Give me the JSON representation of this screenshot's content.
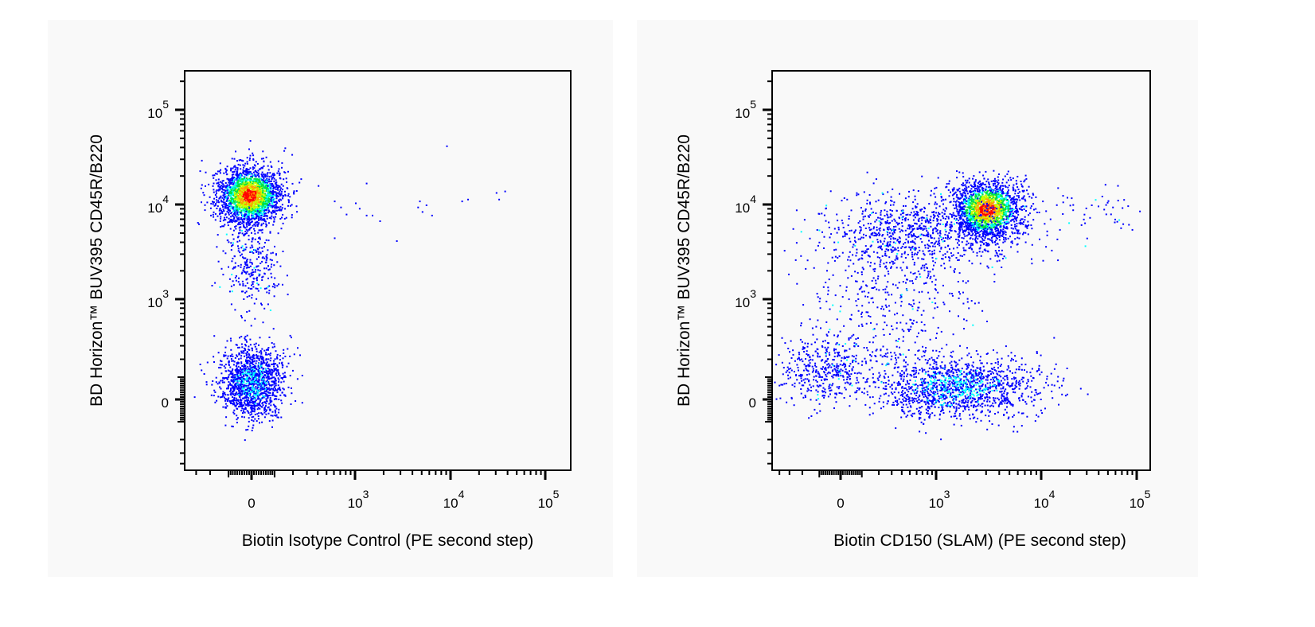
{
  "chart_data": [
    {
      "type": "scatter",
      "style": "flow cytometry pseudocolor density dot plot",
      "xlabel": "Biotin Isotype Control (PE second step)",
      "ylabel": "BD Horizon™ BUV395 CD45R/B220",
      "x_scale": "biexponential",
      "y_scale": "biexponential",
      "xlim": [
        -410,
        185000
      ],
      "ylim": [
        -480,
        262143
      ],
      "grid": false,
      "xticks": [
        {
          "value": 0,
          "base": "0",
          "exp": ""
        },
        {
          "value": 1000,
          "base": "10",
          "exp": "3"
        },
        {
          "value": 10000,
          "base": "10",
          "exp": "4"
        },
        {
          "value": 100000,
          "base": "10",
          "exp": "5"
        }
      ],
      "yticks": [
        {
          "value": 0,
          "base": "0",
          "exp": ""
        },
        {
          "value": 1000,
          "base": "10",
          "exp": "3"
        },
        {
          "value": 10000,
          "base": "10",
          "exp": "4"
        },
        {
          "value": 100000,
          "base": "10",
          "exp": "5"
        }
      ],
      "populations": [
        {
          "center": [
            -10,
            12600
          ],
          "spread_asinh": [
            0.38,
            0.35
          ],
          "count": 2300,
          "density": "high"
        },
        {
          "center": [
            0,
            2370
          ],
          "spread_asinh": [
            0.32,
            0.55
          ],
          "count": 300,
          "density": "low"
        },
        {
          "center": [
            0,
            77
          ],
          "spread_asinh": [
            0.38,
            0.43
          ],
          "count": 1400,
          "density": "medium"
        }
      ],
      "outliers": [
        [
          1300,
          17000
        ],
        [
          9000,
          42000
        ],
        [
          600,
          11000
        ],
        [
          700,
          9500
        ],
        [
          800,
          8000
        ],
        [
          1000,
          10500
        ],
        [
          1100,
          9200
        ],
        [
          1300,
          7800
        ],
        [
          1500,
          7800
        ],
        [
          1800,
          6800
        ],
        [
          2700,
          4200
        ],
        [
          4500,
          9500
        ],
        [
          4700,
          11000
        ],
        [
          5000,
          8500
        ],
        [
          5500,
          10000
        ],
        [
          6300,
          7800
        ],
        [
          13000,
          11000
        ],
        [
          15000,
          11500
        ],
        [
          30000,
          13500
        ],
        [
          32000,
          11500
        ],
        [
          37000,
          14000
        ],
        [
          600,
          4500
        ],
        [
          400,
          16000
        ]
      ]
    },
    {
      "type": "scatter",
      "style": "flow cytometry pseudocolor density dot plot",
      "xlabel": "Biotin CD150 (SLAM) (PE second step)",
      "ylabel": "BD Horizon™ BUV395 CD45R/B220",
      "x_scale": "biexponential",
      "y_scale": "biexponential",
      "xlim": [
        -490,
        138000
      ],
      "ylim": [
        -480,
        262143
      ],
      "grid": false,
      "xticks": [
        {
          "value": 0,
          "base": "0",
          "exp": ""
        },
        {
          "value": 1000,
          "base": "10",
          "exp": "3"
        },
        {
          "value": 10000,
          "base": "10",
          "exp": "4"
        },
        {
          "value": 100000,
          "base": "10",
          "exp": "5"
        }
      ],
      "yticks": [
        {
          "value": 0,
          "base": "0",
          "exp": ""
        },
        {
          "value": 1000,
          "base": "10",
          "exp": "3"
        },
        {
          "value": 10000,
          "base": "10",
          "exp": "4"
        },
        {
          "value": 100000,
          "base": "10",
          "exp": "5"
        }
      ],
      "populations": [
        {
          "center": [
            3040,
            9000
          ],
          "spread_asinh": [
            0.38,
            0.35
          ],
          "count": 1900,
          "density": "high"
        },
        {
          "center": [
            580,
            5270
          ],
          "spread_asinh": [
            1.2,
            0.48
          ],
          "count": 900,
          "density": "low"
        },
        {
          "center": [
            1520,
            58
          ],
          "spread_asinh": [
            0.9,
            0.39
          ],
          "count": 1400,
          "density": "medium"
        },
        {
          "center": [
            -58,
            137
          ],
          "spread_asinh": [
            0.7,
            0.4
          ],
          "count": 450,
          "density": "low"
        },
        {
          "center": [
            300,
            925
          ],
          "spread_asinh": [
            1.1,
            0.8
          ],
          "count": 350,
          "density": "low"
        },
        {
          "center": [
            39700,
            8700
          ],
          "spread_asinh": [
            0.6,
            0.3
          ],
          "count": 45,
          "density": "low"
        }
      ],
      "outliers": []
    }
  ],
  "colors": {
    "colormap": [
      "#0000ff",
      "#00ffff",
      "#00e040",
      "#c8ff00",
      "#ff9900",
      "#ff0000"
    ],
    "axis": "#000000",
    "panel_background": "#f9f9f9"
  }
}
